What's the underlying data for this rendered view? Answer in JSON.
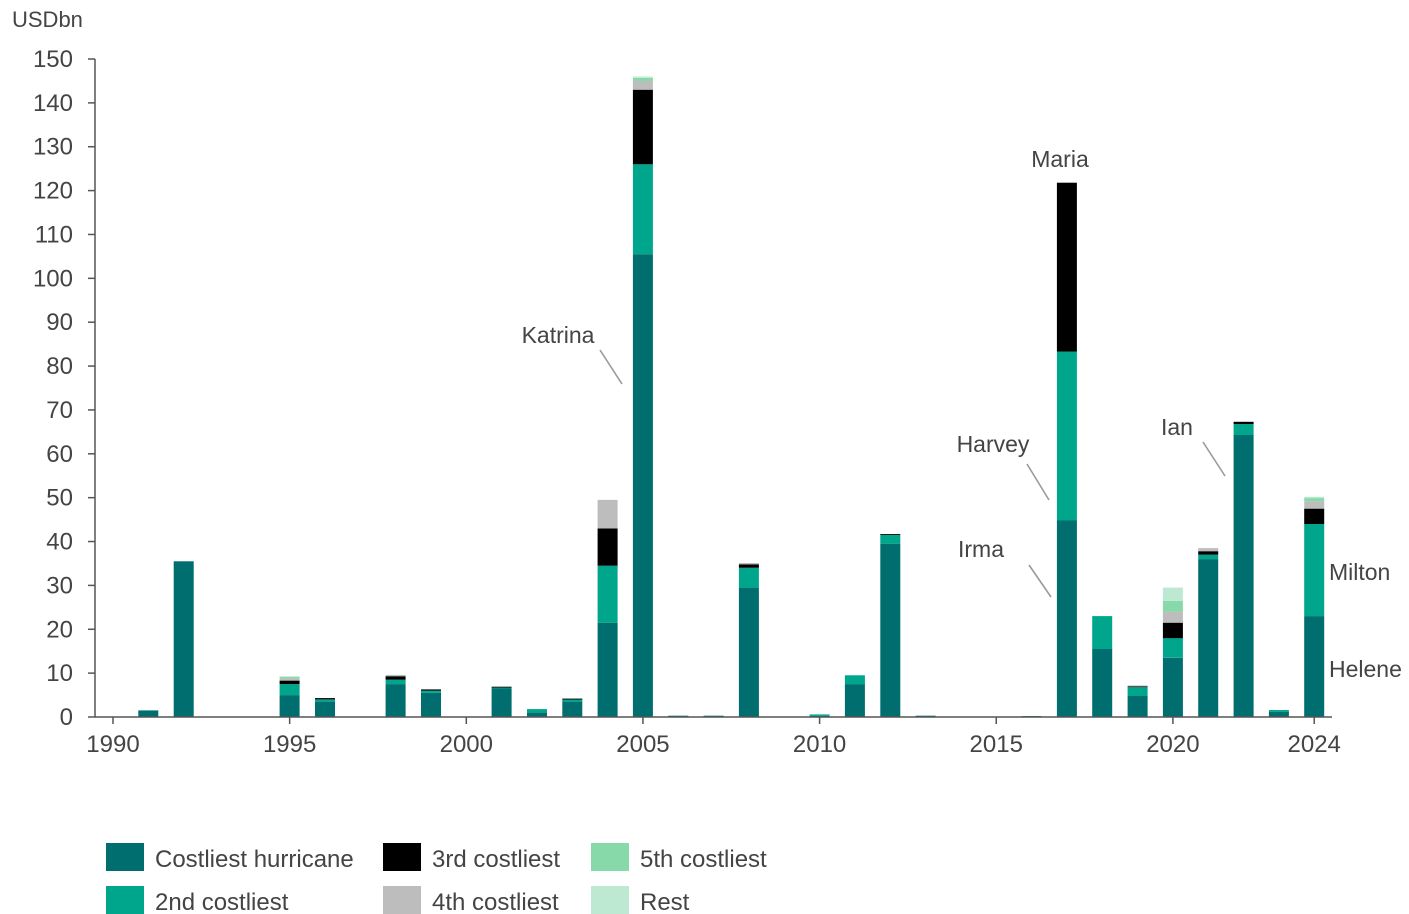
{
  "chart_data": {
    "type": "bar",
    "stacked": true,
    "unit_label": "USDbn",
    "x": [
      1990,
      1991,
      1992,
      1993,
      1994,
      1995,
      1996,
      1997,
      1998,
      1999,
      2000,
      2001,
      2002,
      2003,
      2004,
      2005,
      2006,
      2007,
      2008,
      2009,
      2010,
      2011,
      2012,
      2013,
      2014,
      2015,
      2016,
      2017,
      2018,
      2019,
      2020,
      2021,
      2022,
      2023,
      2024
    ],
    "x_ticks": [
      "1990",
      "1995",
      "2000",
      "2005",
      "2010",
      "2015",
      "2020",
      "2024"
    ],
    "x_tick_values": [
      1990,
      1995,
      2000,
      2005,
      2010,
      2015,
      2020,
      2024
    ],
    "ylim": [
      0,
      150
    ],
    "y_ticks": [
      "0",
      "10",
      "20",
      "30",
      "40",
      "50",
      "60",
      "70",
      "80",
      "90",
      "100",
      "110",
      "120",
      "130",
      "140",
      "150"
    ],
    "y_tick_values": [
      0,
      10,
      20,
      30,
      40,
      50,
      60,
      70,
      80,
      90,
      100,
      110,
      120,
      130,
      140,
      150
    ],
    "grid": false,
    "legend_position": "bottom",
    "series": [
      {
        "name": "Costliest hurricane",
        "color": "#006e6e",
        "values": [
          0,
          1.5,
          35.5,
          0,
          0,
          5,
          3.5,
          0,
          7.5,
          5.5,
          0,
          6.5,
          1,
          3.5,
          21.5,
          105.5,
          0.3,
          0.3,
          29.5,
          0,
          0.3,
          7.5,
          39.5,
          0.3,
          0,
          0,
          0.2,
          44.8,
          15.5,
          4.8,
          13.5,
          36,
          64.3,
          1.2,
          23
        ]
      },
      {
        "name": "2nd costliest",
        "color": "#00a68c",
        "values": [
          0,
          0,
          0,
          0,
          0,
          2.5,
          0.5,
          0,
          1,
          0.5,
          0,
          0.2,
          0.8,
          0.5,
          13,
          20.5,
          0,
          0,
          4.5,
          0,
          0.3,
          2,
          2,
          0,
          0,
          0,
          0,
          38.5,
          7.5,
          2,
          4.5,
          1,
          2.5,
          0.4,
          21
        ]
      },
      {
        "name": "3rd costliest",
        "color": "#000000",
        "values": [
          0,
          0,
          0,
          0,
          0,
          0.8,
          0.3,
          0,
          0.8,
          0.3,
          0,
          0.2,
          0,
          0.2,
          8.5,
          17,
          0,
          0,
          0.8,
          0,
          0,
          0,
          0.2,
          0,
          0,
          0,
          0,
          38.5,
          0,
          0.2,
          3.5,
          0.8,
          0.5,
          0,
          3.5
        ]
      },
      {
        "name": "4th costliest",
        "color": "#bdbdbd",
        "values": [
          0,
          0,
          0,
          0,
          0,
          0.5,
          0,
          0,
          0.3,
          0,
          0,
          0,
          0,
          0,
          6.5,
          2,
          0,
          0,
          0.3,
          0,
          0,
          0,
          0,
          0,
          0,
          0,
          0,
          0,
          0,
          0.2,
          2.5,
          0.7,
          0,
          0,
          1.7
        ]
      },
      {
        "name": "5th costliest",
        "color": "#88d9aa",
        "values": [
          0,
          0,
          0,
          0,
          0,
          0.4,
          0,
          0,
          0,
          0,
          0,
          0,
          0,
          0,
          0,
          0.7,
          0,
          0,
          0,
          0,
          0,
          0,
          0,
          0,
          0,
          0,
          0,
          0,
          0,
          0,
          2.5,
          0,
          0,
          0,
          0.7
        ]
      },
      {
        "name": "Rest",
        "color": "#bde9d2",
        "values": [
          0,
          0,
          0,
          0,
          0,
          0,
          0,
          0,
          0,
          0,
          0,
          0,
          0,
          0,
          0,
          0.3,
          0,
          0,
          0,
          0,
          0,
          0,
          0,
          0,
          0,
          0,
          0,
          0,
          0,
          0,
          3,
          0,
          0,
          0,
          0.3
        ]
      }
    ],
    "annotations": [
      {
        "text": "Katrina",
        "year": 2005,
        "value": 73,
        "leader": true
      },
      {
        "text": "Maria",
        "year": 2017,
        "value": 125,
        "leader": false
      },
      {
        "text": "Harvey",
        "year": 2017,
        "value": 49,
        "leader": true
      },
      {
        "text": "Irma",
        "year": 2017,
        "value": 27,
        "leader": true
      },
      {
        "text": "Ian",
        "year": 2022,
        "value": 55,
        "leader": true
      },
      {
        "text": "Milton",
        "year": 2024,
        "value": 33,
        "leader": false
      },
      {
        "text": "Helene",
        "year": 2024,
        "value": 11,
        "leader": false
      }
    ]
  }
}
